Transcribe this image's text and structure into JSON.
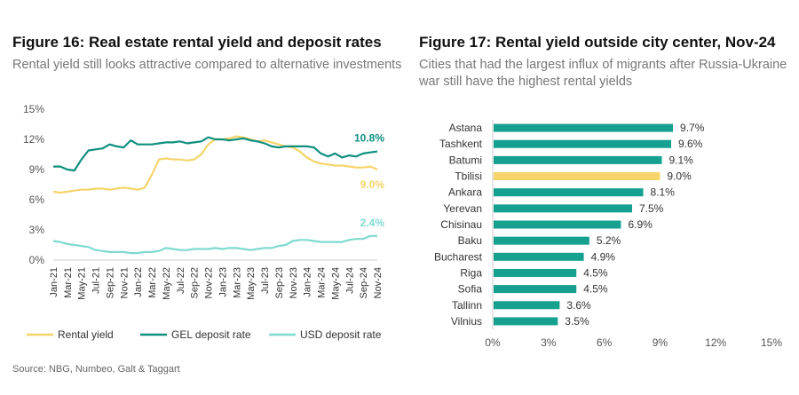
{
  "figure16": {
    "title": "Figure 16: Real estate rental yield and deposit rates",
    "subtitle": "Rental yield still looks attractive compared to alternative investments"
  },
  "figure17": {
    "title": "Figure 17: Rental yield outside city center, Nov-24",
    "subtitle": "Cities that had the largest influx of migrants after Russia-Ukraine war still have the highest rental yields"
  },
  "source": "Source: NBG, Numbeo, Galt & Taggart",
  "colors": {
    "rental_yield": "#F5D46A",
    "gel_deposit": "#0E8F7E",
    "usd_deposit": "#7FDAD0",
    "bar": "#15A08F",
    "bar_highlight": "#F5D46A",
    "grid": "#DDDDDD"
  },
  "chart_data": [
    {
      "type": "line",
      "ylim": [
        0,
        15
      ],
      "yticks": [
        0,
        3,
        6,
        9,
        12,
        15
      ],
      "ytick_labels": [
        "0%",
        "3%",
        "6%",
        "9%",
        "12%",
        "15%"
      ],
      "x_tick_labels": [
        "Jan-21",
        "Mar-21",
        "May-21",
        "Jul-21",
        "Sep-21",
        "Nov-21",
        "Jan-22",
        "Mar-22",
        "May-22",
        "Jul-22",
        "Sep-22",
        "Nov-22",
        "Jan-23",
        "Mar-23",
        "May-23",
        "Jul-23",
        "Sep-23",
        "Nov-23",
        "Jan-24",
        "Mar-24",
        "May-24",
        "Jul-24",
        "Sep-24",
        "Nov-24"
      ],
      "x": [
        "Jan-21",
        "Feb-21",
        "Mar-21",
        "Apr-21",
        "May-21",
        "Jun-21",
        "Jul-21",
        "Aug-21",
        "Sep-21",
        "Oct-21",
        "Nov-21",
        "Dec-21",
        "Jan-22",
        "Feb-22",
        "Mar-22",
        "Apr-22",
        "May-22",
        "Jun-22",
        "Jul-22",
        "Aug-22",
        "Sep-22",
        "Oct-22",
        "Nov-22",
        "Dec-22",
        "Jan-23",
        "Feb-23",
        "Mar-23",
        "Apr-23",
        "May-23",
        "Jun-23",
        "Jul-23",
        "Aug-23",
        "Sep-23",
        "Oct-23",
        "Nov-23",
        "Dec-23",
        "Jan-24",
        "Feb-24",
        "Mar-24",
        "Apr-24",
        "May-24",
        "Jun-24",
        "Jul-24",
        "Aug-24",
        "Sep-24",
        "Oct-24",
        "Nov-24"
      ],
      "series": [
        {
          "name": "Rental yield",
          "values": [
            6.8,
            6.7,
            6.8,
            6.9,
            7.0,
            7.0,
            7.1,
            7.1,
            7.0,
            7.1,
            7.2,
            7.1,
            7.0,
            7.2,
            8.5,
            10.0,
            10.1,
            10.0,
            10.0,
            9.9,
            10.0,
            10.5,
            11.5,
            12.0,
            12.0,
            12.1,
            12.3,
            12.2,
            12.0,
            11.8,
            11.9,
            11.7,
            11.5,
            11.3,
            11.2,
            10.8,
            10.2,
            9.8,
            9.6,
            9.5,
            9.4,
            9.4,
            9.3,
            9.2,
            9.2,
            9.3,
            9.0
          ],
          "end_label": "9.0%"
        },
        {
          "name": "GEL deposit rate",
          "values": [
            9.3,
            9.3,
            9.0,
            8.9,
            10.0,
            10.9,
            11.0,
            11.1,
            11.5,
            11.3,
            11.2,
            11.9,
            11.5,
            11.5,
            11.5,
            11.6,
            11.7,
            11.7,
            11.8,
            11.6,
            11.7,
            11.8,
            12.2,
            12.0,
            12.0,
            11.9,
            12.0,
            12.1,
            11.9,
            11.8,
            11.6,
            11.3,
            11.2,
            11.3,
            11.3,
            11.3,
            11.3,
            11.2,
            10.6,
            10.3,
            10.6,
            10.2,
            10.4,
            10.3,
            10.6,
            10.7,
            10.8
          ],
          "end_label": "10.8%"
        },
        {
          "name": "USD deposit rate",
          "values": [
            1.9,
            1.8,
            1.6,
            1.5,
            1.4,
            1.3,
            1.0,
            0.9,
            0.8,
            0.8,
            0.8,
            0.7,
            0.7,
            0.8,
            0.8,
            0.9,
            1.2,
            1.1,
            1.0,
            1.0,
            1.1,
            1.1,
            1.1,
            1.2,
            1.1,
            1.2,
            1.2,
            1.1,
            1.0,
            1.1,
            1.2,
            1.2,
            1.4,
            1.5,
            1.9,
            2.0,
            2.0,
            1.9,
            1.8,
            1.8,
            1.8,
            1.8,
            2.0,
            2.1,
            2.1,
            2.4,
            2.4
          ],
          "end_label": "2.4%"
        }
      ],
      "legend": [
        "Rental yield",
        "GEL deposit rate",
        "USD deposit rate"
      ],
      "legend_position": "bottom"
    },
    {
      "type": "bar",
      "orientation": "horizontal",
      "xlim": [
        0,
        15
      ],
      "xticks": [
        0,
        3,
        6,
        9,
        12,
        15
      ],
      "xtick_labels": [
        "0%",
        "3%",
        "6%",
        "9%",
        "12%",
        "15%"
      ],
      "categories": [
        "Astana",
        "Tashkent",
        "Batumi",
        "Tbilisi",
        "Ankara",
        "Yerevan",
        "Chisinau",
        "Baku",
        "Bucharest",
        "Riga",
        "Sofia",
        "Tallinn",
        "Vilnius"
      ],
      "values": [
        9.7,
        9.6,
        9.1,
        9.0,
        8.1,
        7.5,
        6.9,
        5.2,
        4.9,
        4.5,
        4.5,
        3.6,
        3.5
      ],
      "value_labels": [
        "9.7%",
        "9.6%",
        "9.1%",
        "9.0%",
        "8.1%",
        "7.5%",
        "6.9%",
        "5.2%",
        "4.9%",
        "4.5%",
        "4.5%",
        "3.6%",
        "3.5%"
      ],
      "highlight": "Tbilisi"
    }
  ]
}
